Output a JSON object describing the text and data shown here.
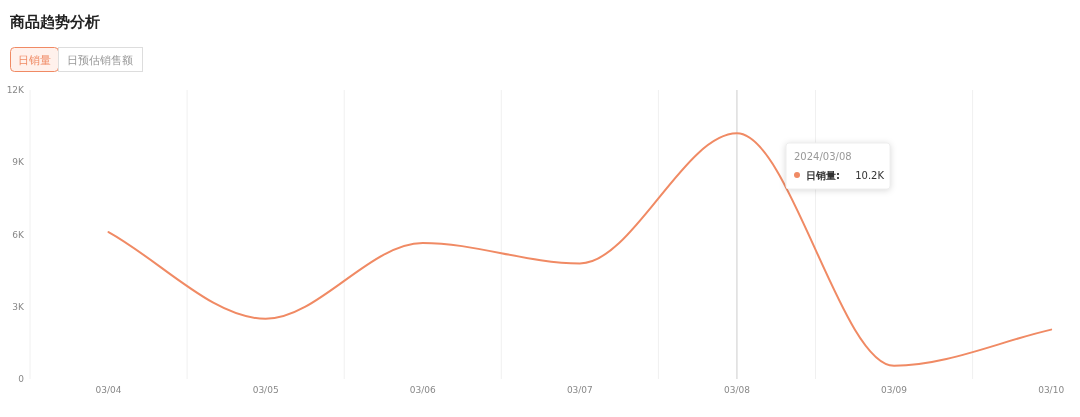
{
  "chart_data": {
    "type": "line",
    "title": "商品趋势分析",
    "categories": [
      "03/04",
      "03/05",
      "03/06",
      "03/07",
      "03/08",
      "03/09",
      "03/10"
    ],
    "series": [
      {
        "name": "日销量",
        "color": "#f08a64",
        "values": [
          6100,
          2500,
          5650,
          4800,
          10200,
          550,
          2050
        ]
      }
    ],
    "ylim": [
      0,
      12000
    ],
    "yticks": [
      0,
      {
        "value": 3000,
        "label": "3K"
      },
      {
        "value": 6000,
        "label": "6K"
      },
      {
        "value": 9000,
        "label": "9K"
      },
      {
        "value": 12000,
        "label": "12K"
      }
    ],
    "grid": "x",
    "marker": "none",
    "line_style": "solid",
    "ref_lines": [
      {
        "axis": "x",
        "value": "03/08",
        "color": "#cccccc"
      }
    ],
    "annotations": [
      "日预估销售额",
      "2024/03/08",
      "日销量:",
      "10.2K"
    ]
  }
}
